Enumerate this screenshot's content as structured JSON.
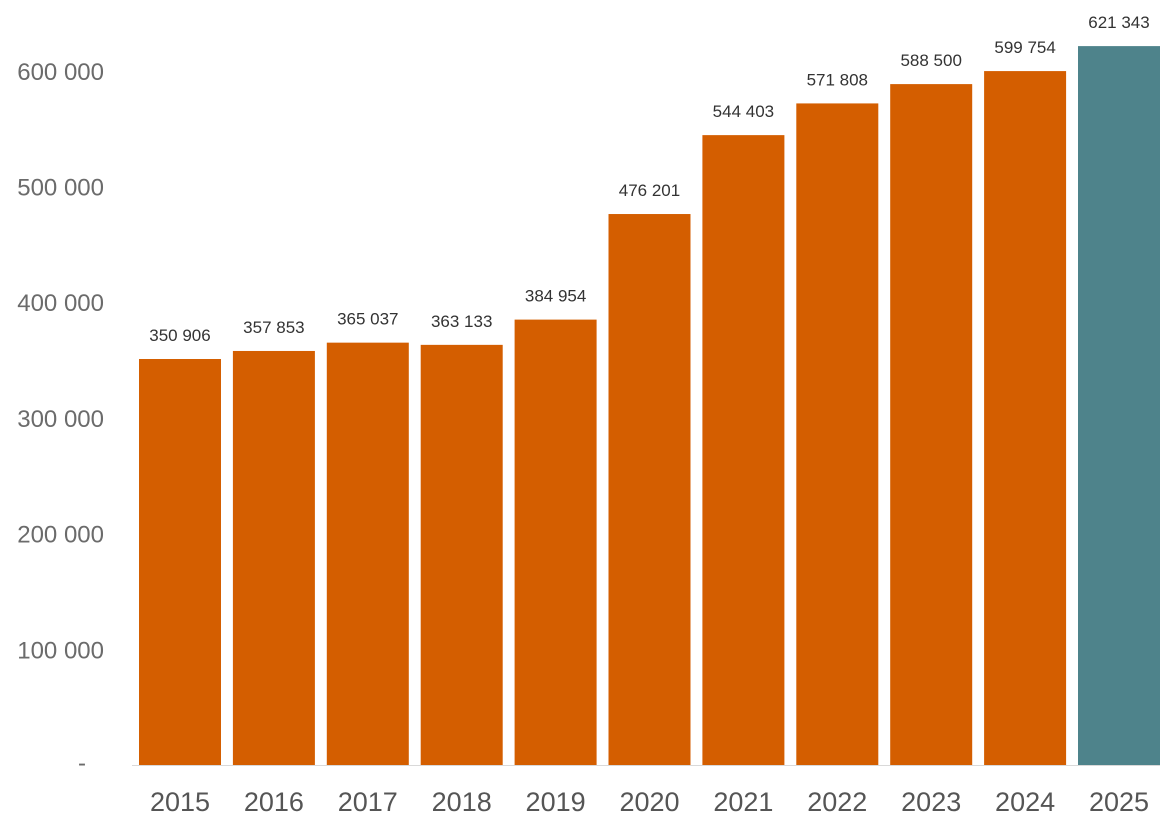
{
  "chart_data": {
    "type": "bar",
    "title": "",
    "xlabel": "",
    "ylabel": "",
    "categories": [
      "2015",
      "2016",
      "2017",
      "2018",
      "2019",
      "2020",
      "2021",
      "2022",
      "2023",
      "2024",
      "2025"
    ],
    "values": [
      350906,
      357853,
      365037,
      363133,
      384954,
      476201,
      544403,
      571808,
      588500,
      599754,
      621343
    ],
    "data_labels": [
      "350 906",
      "357 853",
      "365 037",
      "363 133",
      "384 954",
      "476 201",
      "544 403",
      "571 808",
      "588 500",
      "599 754",
      "621 343"
    ],
    "ylim": [
      0,
      600000
    ],
    "yticks": [
      0,
      100000,
      200000,
      300000,
      400000,
      500000,
      600000
    ],
    "ytick_labels": [
      "-",
      "100 000",
      "200 000",
      "300 000",
      "400 000",
      "500 000",
      "600 000"
    ],
    "grid": false,
    "legend": "none",
    "colors": {
      "bar": "#d45e00",
      "highlight_bar": "#4e838b",
      "highlight_category": "2025",
      "axis": "#d9d9d9"
    }
  }
}
